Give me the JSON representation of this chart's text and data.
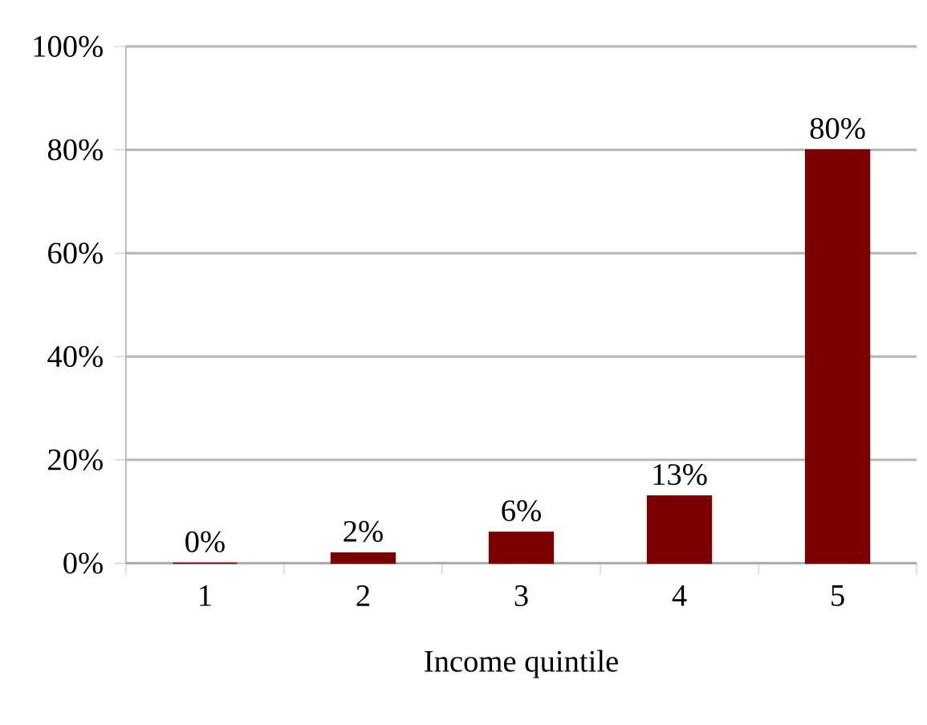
{
  "chart_data": {
    "type": "bar",
    "xlabel": "Income quintile",
    "categories": [
      "1",
      "2",
      "3",
      "4",
      "5"
    ],
    "values": [
      0,
      2,
      6,
      13,
      80
    ],
    "value_labels": [
      "0%",
      "2%",
      "6%",
      "13%",
      "80%"
    ],
    "color": "#7b0000",
    "ylim": [
      0,
      100
    ],
    "yticks": [
      {
        "value": 0,
        "label": "0%"
      },
      {
        "value": 20,
        "label": "20%"
      },
      {
        "value": 40,
        "label": "40%"
      },
      {
        "value": 60,
        "label": "60%"
      },
      {
        "value": 80,
        "label": "80%"
      },
      {
        "value": 100,
        "label": "100%"
      }
    ],
    "grid": "y"
  }
}
